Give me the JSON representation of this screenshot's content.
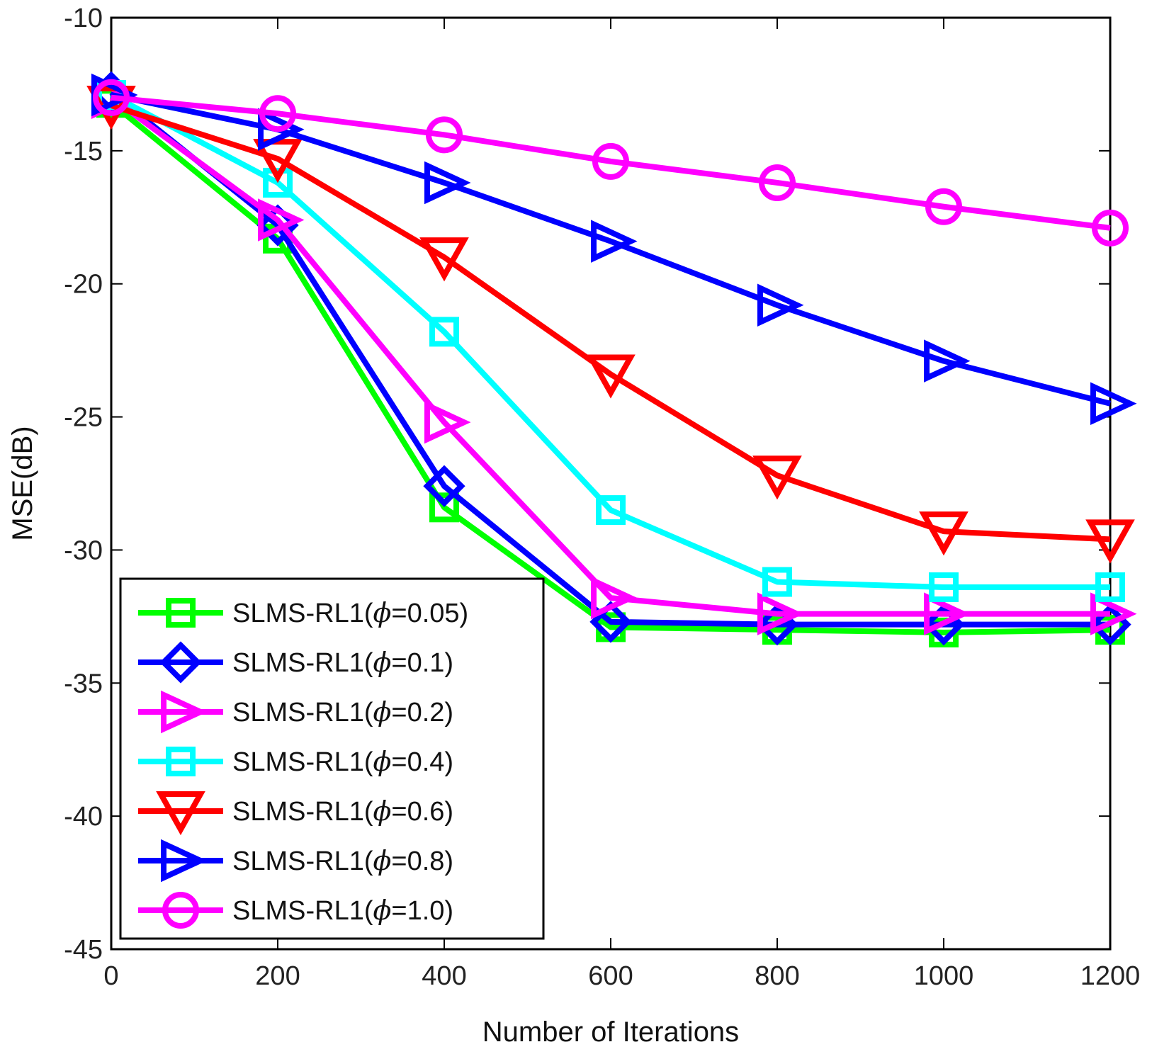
{
  "chart_data": {
    "type": "line",
    "title": "",
    "xlabel": "Number of Iterations",
    "ylabel": "MSE(dB)",
    "xlim": [
      0,
      1200
    ],
    "ylim": [
      -45,
      -10
    ],
    "xticks": [
      0,
      200,
      400,
      600,
      800,
      1000,
      1200
    ],
    "yticks": [
      -45,
      -40,
      -35,
      -30,
      -25,
      -20,
      -15,
      -10
    ],
    "xtick_labels": [
      "0",
      "200",
      "400",
      "600",
      "800",
      "1000",
      "1200"
    ],
    "ytick_labels": [
      "-45",
      "-40",
      "-35",
      "-30",
      "-25",
      "-20",
      "-15",
      "-10"
    ],
    "grid": false,
    "legend_position": "bottom-left",
    "x": [
      0,
      200,
      400,
      600,
      800,
      1000,
      1200
    ],
    "series": [
      {
        "name": "SLMS-RL1(ϕ=0.05)",
        "label_prefix": "SLMS-RL1(",
        "label_phi": "ϕ",
        "label_suffix": "=0.05)",
        "color": "#00ff00",
        "marker": "square",
        "values": [
          -13.2,
          -18.3,
          -28.4,
          -32.9,
          -33.0,
          -33.1,
          -33.0
        ]
      },
      {
        "name": "SLMS-RL1(ϕ=0.1)",
        "label_prefix": "SLMS-RL1(",
        "label_phi": "ϕ",
        "label_suffix": "=0.1)",
        "color": "#0000ff",
        "marker": "diamond",
        "values": [
          -12.8,
          -17.8,
          -27.6,
          -32.7,
          -32.8,
          -32.8,
          -32.8
        ]
      },
      {
        "name": "SLMS-RL1(ϕ=0.2)",
        "label_prefix": "SLMS-RL1(",
        "label_phi": "ϕ",
        "label_suffix": "=0.2)",
        "color": "#ff00ff",
        "marker": "triangle-right",
        "values": [
          -13.0,
          -17.6,
          -25.2,
          -31.8,
          -32.4,
          -32.4,
          -32.4
        ]
      },
      {
        "name": "SLMS-RL1(ϕ=0.4)",
        "label_prefix": "SLMS-RL1(",
        "label_phi": "ϕ",
        "label_suffix": "=0.4)",
        "color": "#00ffff",
        "marker": "square",
        "values": [
          -12.9,
          -16.2,
          -21.8,
          -28.5,
          -31.2,
          -31.4,
          -31.4
        ]
      },
      {
        "name": "SLMS-RL1(ϕ=0.6)",
        "label_prefix": "SLMS-RL1(",
        "label_phi": "ϕ",
        "label_suffix": "=0.6)",
        "color": "#ff0000",
        "marker": "triangle-down",
        "values": [
          -13.3,
          -15.3,
          -19.0,
          -23.4,
          -27.2,
          -29.3,
          -29.6
        ]
      },
      {
        "name": "SLMS-RL1(ϕ=0.8)",
        "label_prefix": "SLMS-RL1(",
        "label_phi": "ϕ",
        "label_suffix": "=0.8)",
        "color": "#0000ff",
        "marker": "triangle-right",
        "values": [
          -12.9,
          -14.2,
          -16.2,
          -18.4,
          -20.8,
          -22.9,
          -24.5
        ]
      },
      {
        "name": "SLMS-RL1(ϕ=1.0)",
        "label_prefix": "SLMS-RL1(",
        "label_phi": "ϕ",
        "label_suffix": "=1.0)",
        "color": "#ff00ff",
        "marker": "circle",
        "values": [
          -13.0,
          -13.6,
          -14.4,
          -15.4,
          -16.2,
          -17.1,
          -17.9
        ]
      }
    ]
  }
}
